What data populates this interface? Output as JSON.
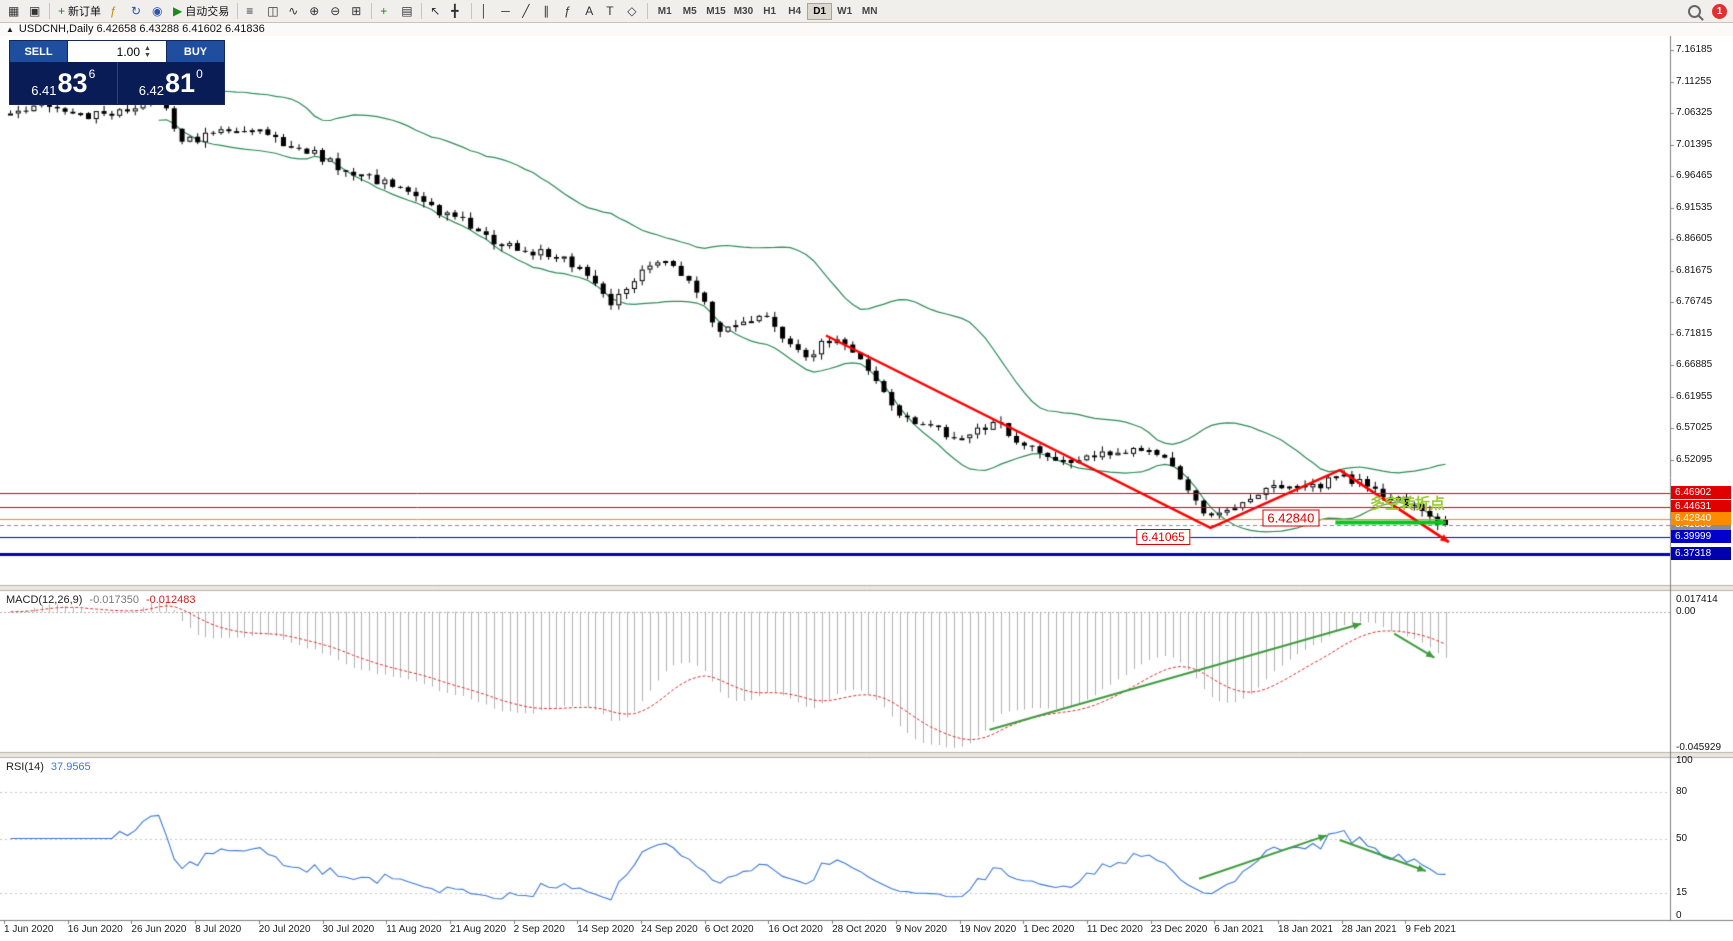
{
  "toolbar": {
    "new_order_label": "新订单",
    "auto_trading_label": "自动交易",
    "timeframes": [
      "M1",
      "M5",
      "M15",
      "M30",
      "H1",
      "H4",
      "D1",
      "W1",
      "MN"
    ],
    "active_timeframe": "D1",
    "badge_count": "1",
    "icons": {
      "new_chart": "▦",
      "profiles": "▣",
      "new_order": "+",
      "indicator_window": "ƒ",
      "history": "↻",
      "alerts": "◉",
      "auto_play": "▶",
      "bars": "≡",
      "candles": "◫",
      "linechart": "∿",
      "zoom_in": "⊕",
      "zoom_out": "⊖",
      "tile": "⊞",
      "indicators": "+",
      "templates": "▤",
      "cursor": "↖",
      "crosshair": "╋",
      "vline": "│",
      "hline": "─",
      "trendline": "╱",
      "channel": "∥",
      "fibo": "ƒ",
      "text_tool": "A",
      "label_tool": "T",
      "shapes": "◇"
    }
  },
  "chart_header": "USDCNH,Daily  6.42658 6.43288 6.41602 6.41836",
  "order_panel": {
    "sell_label": "SELL",
    "buy_label": "BUY",
    "volume": "1.00",
    "sell_price": {
      "big": "6.41",
      "pips": "83",
      "pt": "6"
    },
    "buy_price": {
      "big": "6.42",
      "pips": "81",
      "pt": "0"
    }
  },
  "chart_data": {
    "type": "candlestick",
    "symbol": "USDCNH",
    "period": "Daily",
    "ohlc": {
      "open": 6.42658,
      "high": 6.43288,
      "low": 6.41602,
      "close": 6.41836
    },
    "price_axis_ticks": [
      "7.16185",
      "7.11255",
      "7.06325",
      "7.01395",
      "6.96465",
      "6.91535",
      "6.86605",
      "6.81675",
      "6.76745",
      "6.71815",
      "6.66885",
      "6.61955",
      "6.57025",
      "6.52095"
    ],
    "price_lines": [
      {
        "value": "6.46902",
        "price": 6.46902,
        "bg": "#e00000",
        "fg": "#ffffff",
        "width": 1,
        "style": "solid"
      },
      {
        "value": "6.44631",
        "price": 6.44631,
        "bg": "#e00000",
        "fg": "#ffffff",
        "width": 1,
        "style": "solid"
      },
      {
        "value": "6.41836",
        "price": 6.41836,
        "bg": "#8c8c8c",
        "fg": "#ffffff",
        "width": 1,
        "style": "dash"
      },
      {
        "value": "6.42840",
        "price": 6.4284,
        "bg": "#ff8a00",
        "fg": "#ffffff",
        "width": 1,
        "style": "solid"
      },
      {
        "value": "6.39999",
        "price": 6.39999,
        "bg": "#0000cd",
        "fg": "#ffffff",
        "width": 1,
        "style": "solid"
      },
      {
        "value": "6.37318",
        "price": 6.37318,
        "bg": "#0000b0",
        "fg": "#ffffff",
        "width": 3,
        "style": "solid"
      }
    ],
    "candle_count": 185,
    "anchors": [
      [
        0,
        7.062
      ],
      [
        0.02,
        7.078
      ],
      [
        0.05,
        7.056
      ],
      [
        0.08,
        7.07
      ],
      [
        0.104,
        7.092
      ],
      [
        0.118,
        7.016
      ],
      [
        0.14,
        7.03
      ],
      [
        0.165,
        7.042
      ],
      [
        0.19,
        7.018
      ],
      [
        0.215,
        6.996
      ],
      [
        0.24,
        6.966
      ],
      [
        0.265,
        6.952
      ],
      [
        0.29,
        6.916
      ],
      [
        0.315,
        6.894
      ],
      [
        0.34,
        6.86
      ],
      [
        0.365,
        6.846
      ],
      [
        0.385,
        6.838
      ],
      [
        0.405,
        6.8
      ],
      [
        0.418,
        6.762
      ],
      [
        0.432,
        6.8
      ],
      [
        0.447,
        6.822
      ],
      [
        0.462,
        6.828
      ],
      [
        0.477,
        6.79
      ],
      [
        0.492,
        6.726
      ],
      [
        0.51,
        6.736
      ],
      [
        0.525,
        6.748
      ],
      [
        0.54,
        6.7
      ],
      [
        0.556,
        6.686
      ],
      [
        0.572,
        6.712
      ],
      [
        0.588,
        6.686
      ],
      [
        0.604,
        6.636
      ],
      [
        0.617,
        6.596
      ],
      [
        0.633,
        6.578
      ],
      [
        0.65,
        6.562
      ],
      [
        0.668,
        6.556
      ],
      [
        0.685,
        6.58
      ],
      [
        0.702,
        6.552
      ],
      [
        0.718,
        6.534
      ],
      [
        0.735,
        6.518
      ],
      [
        0.752,
        6.524
      ],
      [
        0.768,
        6.532
      ],
      [
        0.785,
        6.538
      ],
      [
        0.8,
        6.528
      ],
      [
        0.815,
        6.494
      ],
      [
        0.83,
        6.444
      ],
      [
        0.843,
        6.432
      ],
      [
        0.856,
        6.452
      ],
      [
        0.87,
        6.47
      ],
      [
        0.883,
        6.48
      ],
      [
        0.896,
        6.486
      ],
      [
        0.91,
        6.476
      ],
      [
        0.924,
        6.498
      ],
      [
        0.938,
        6.486
      ],
      [
        0.952,
        6.472
      ],
      [
        0.966,
        6.458
      ],
      [
        0.98,
        6.446
      ],
      [
        0.99,
        6.432
      ],
      [
        1,
        6.418
      ]
    ],
    "bollinger": {
      "period": 20,
      "deviation": 2,
      "color": "#2e8b57"
    },
    "trend_zigzag": {
      "color": "#fe0000",
      "points": [
        {
          "t": 0.57,
          "p": 6.715
        },
        {
          "t": 0.838,
          "p": 6.414
        },
        {
          "t": 0.928,
          "p": 6.5045
        },
        {
          "t": 1.004,
          "p": 6.392
        }
      ]
    },
    "support_segment": {
      "color": "#00c81e",
      "price": 6.4225,
      "t1": 0.925,
      "t2": 1.002
    },
    "annotations": {
      "low_label": {
        "text": "6.41065",
        "t": 0.805,
        "p": 6.4
      },
      "level_label": {
        "text": "6.42840",
        "t": 0.894,
        "p": 6.4295
      },
      "turning_label": {
        "text": "多空转折点",
        "t": 0.949,
        "p": 6.453,
        "color": "#9acd32"
      }
    },
    "macd": {
      "name": "MACD(12,26,9)",
      "value": "-0.017350",
      "signal_value": "-0.012483",
      "axis": [
        "0.017414",
        "0.00",
        "-0.045929"
      ],
      "hist_color": "#b2b2b2",
      "signal_color": "#e03030",
      "arrow_color": "#3f9b3f",
      "arrows": [
        {
          "t1": 0.684,
          "v1": -0.0422,
          "t2": 0.943,
          "v2": -0.0043
        },
        {
          "t1": 0.966,
          "v1": -0.0078,
          "t2": 0.994,
          "v2": -0.0164
        }
      ]
    },
    "rsi": {
      "name": "RSI(14)",
      "value": "37.9565",
      "axis": [
        "100",
        "80",
        "50",
        "15",
        "0"
      ],
      "levels": [
        80,
        50,
        15
      ],
      "color": "#3c78d8",
      "arrow_color": "#3f9b3f",
      "arrows": [
        {
          "t1": 0.83,
          "v1": 24,
          "t2": 0.919,
          "v2": 52
        },
        {
          "t1": 0.928,
          "v1": 49,
          "t2": 0.988,
          "v2": 29
        }
      ]
    },
    "time_axis": [
      "1 Jun 2020",
      "16 Jun 2020",
      "26 Jun 2020",
      "8 Jul 2020",
      "20 Jul 2020",
      "30 Jul 2020",
      "11 Aug 2020",
      "21 Aug 2020",
      "2 Sep 2020",
      "14 Sep 2020",
      "24 Sep 2020",
      "6 Oct 2020",
      "16 Oct 2020",
      "28 Oct 2020",
      "9 Nov 2020",
      "19 Nov 2020",
      "1 Dec 2020",
      "11 Dec 2020",
      "23 Dec 2020",
      "6 Jan 2021",
      "18 Jan 2021",
      "28 Jan 2021",
      "9 Feb 2021"
    ]
  }
}
